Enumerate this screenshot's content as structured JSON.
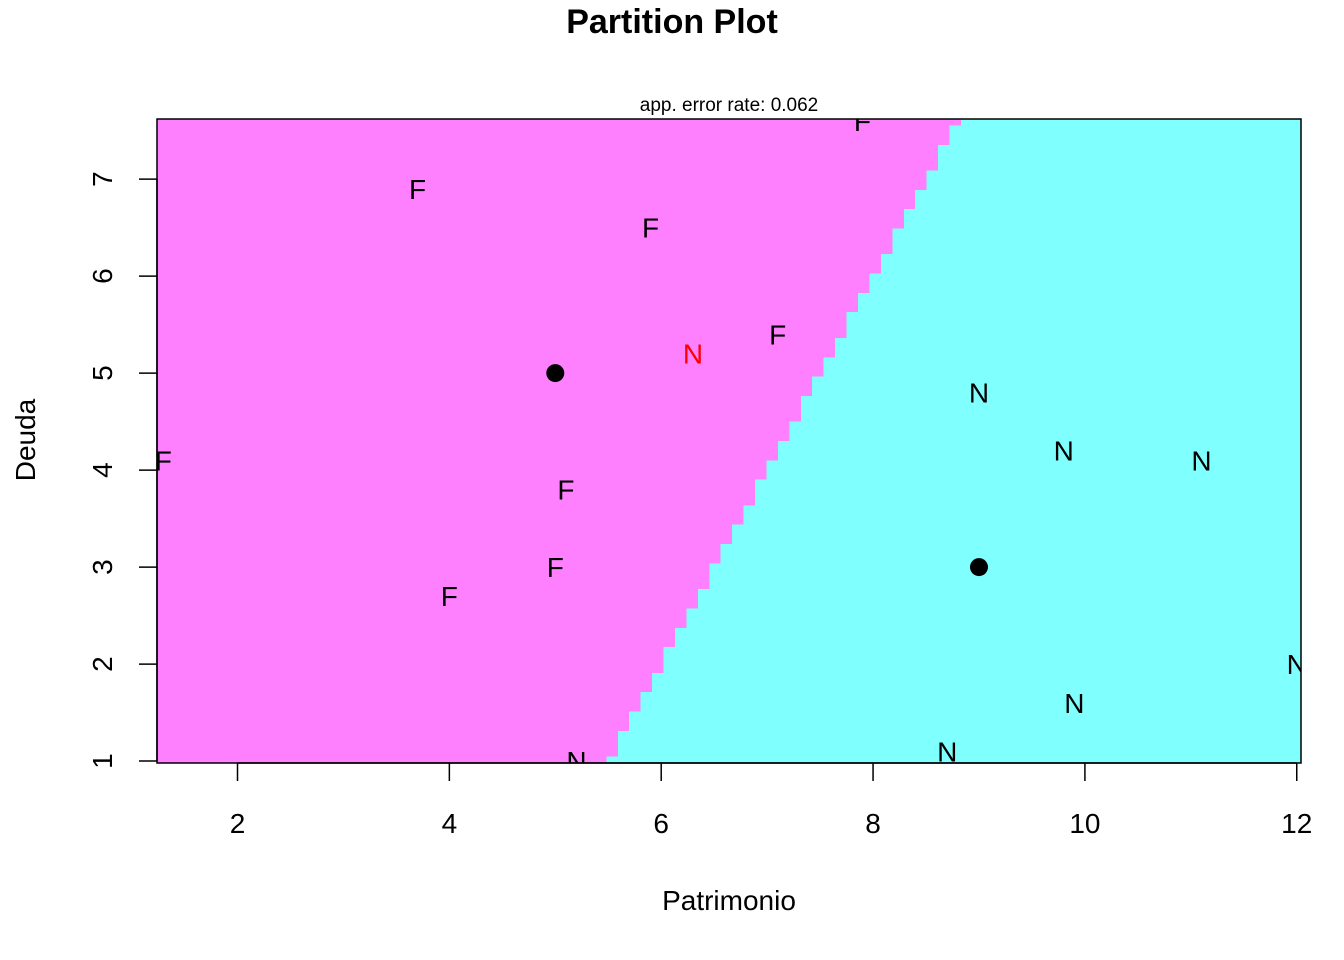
{
  "chart_data": {
    "type": "scatter",
    "title": "Partition Plot",
    "subtitle": "app. error rate: 0.062",
    "xlabel": "Patrimonio",
    "ylabel": "Deuda",
    "xlim": [
      1.24,
      12.04
    ],
    "ylim": [
      0.98,
      7.62
    ],
    "xticks": [
      2,
      4,
      6,
      8,
      10,
      12
    ],
    "yticks": [
      1,
      2,
      3,
      4,
      5,
      6,
      7
    ],
    "region_colors": {
      "F": "#ff80ff",
      "N": "#80ffff"
    },
    "misclassified_color": "#ff0000",
    "point_color": "#000000",
    "centroids": [
      {
        "class": "F",
        "x": 5.0,
        "y": 5.0
      },
      {
        "class": "N",
        "x": 9.0,
        "y": 3.0
      }
    ],
    "points": [
      {
        "label": "F",
        "x": 7.9,
        "y": 7.6,
        "correct": true
      },
      {
        "label": "F",
        "x": 3.7,
        "y": 6.9,
        "correct": true
      },
      {
        "label": "F",
        "x": 5.9,
        "y": 6.5,
        "correct": true
      },
      {
        "label": "F",
        "x": 7.1,
        "y": 5.4,
        "correct": true
      },
      {
        "label": "N",
        "x": 6.3,
        "y": 5.2,
        "correct": false
      },
      {
        "label": "F",
        "x": 1.3,
        "y": 4.1,
        "correct": true
      },
      {
        "label": "F",
        "x": 5.1,
        "y": 3.8,
        "correct": true
      },
      {
        "label": "F",
        "x": 5.0,
        "y": 3.0,
        "correct": true
      },
      {
        "label": "F",
        "x": 4.0,
        "y": 2.7,
        "correct": true
      },
      {
        "label": "N",
        "x": 9.0,
        "y": 4.8,
        "correct": true
      },
      {
        "label": "N",
        "x": 9.8,
        "y": 4.2,
        "correct": true
      },
      {
        "label": "N",
        "x": 11.1,
        "y": 4.1,
        "correct": true
      },
      {
        "label": "N",
        "x": 12.0,
        "y": 2.0,
        "correct": true
      },
      {
        "label": "N",
        "x": 9.9,
        "y": 1.6,
        "correct": true
      },
      {
        "label": "N",
        "x": 8.7,
        "y": 1.1,
        "correct": true
      },
      {
        "label": "N",
        "x": 5.2,
        "y": 1.0,
        "correct": true
      }
    ]
  }
}
